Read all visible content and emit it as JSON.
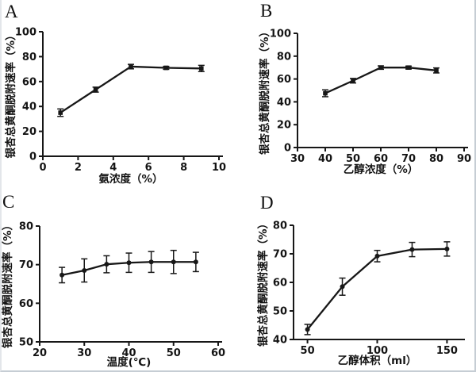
{
  "page": {
    "background": "#ffffff",
    "border_color": "#c6cdd4",
    "ink_color": "#171717"
  },
  "chart_data": [
    {
      "panel": "A",
      "type": "line",
      "x": [
        1,
        3,
        5,
        7,
        9
      ],
      "y": [
        35,
        53.5,
        72,
        71,
        70.5
      ],
      "yerr": [
        3,
        2,
        1.8,
        1.2,
        2.5
      ],
      "xlabel": "氨浓度（%）",
      "ylabel": "银杏总黄酮脱附速率（%）",
      "xlim": [
        0,
        10
      ],
      "ylim": [
        0,
        100
      ],
      "xticks": [
        0,
        2,
        4,
        6,
        8,
        10
      ],
      "yticks": [
        0,
        20,
        40,
        60,
        80,
        100
      ],
      "marker": "square",
      "line_color": "#171717",
      "grid": false,
      "legend": "none"
    },
    {
      "panel": "B",
      "type": "line",
      "x": [
        40,
        50,
        60,
        70,
        80
      ],
      "y": [
        47.5,
        58.5,
        70,
        70,
        67.5
      ],
      "yerr": [
        3,
        2,
        1.5,
        1.3,
        2.2
      ],
      "xlabel": "乙醇浓度（%）",
      "ylabel": "银杏总黄酮脱附速率（%）",
      "xlim": [
        30,
        90
      ],
      "ylim": [
        0,
        100
      ],
      "xticks": [
        30,
        40,
        50,
        60,
        70,
        80,
        90
      ],
      "yticks": [
        0,
        20,
        40,
        60,
        80,
        100
      ],
      "marker": "square",
      "line_color": "#171717",
      "grid": false,
      "legend": "none"
    },
    {
      "panel": "C",
      "type": "line",
      "x": [
        25,
        30,
        35,
        40,
        45,
        50,
        55
      ],
      "y": [
        67.3,
        68.5,
        70.1,
        70.5,
        70.7,
        70.7,
        70.7
      ],
      "yerr": [
        2,
        3,
        2.2,
        2.5,
        2.7,
        3,
        2.5
      ],
      "xlabel": "温度(℃)",
      "ylabel": "银杏总黄酮脱附速率（%）",
      "xlim": [
        20,
        60
      ],
      "ylim": [
        50,
        80
      ],
      "xticks": [
        20,
        30,
        40,
        50,
        60
      ],
      "yticks": [
        50,
        60,
        70,
        80
      ],
      "marker": "circle",
      "line_color": "#171717",
      "grid": false,
      "legend": "none"
    },
    {
      "panel": "D",
      "type": "line",
      "x": [
        50,
        75,
        100,
        125,
        150
      ],
      "y": [
        43.5,
        58.5,
        69.2,
        71.5,
        71.7
      ],
      "yerr": [
        1.8,
        3,
        2,
        2.5,
        2.5
      ],
      "xlabel": "乙醇体积（ml）",
      "ylabel": "银杏总黄酮脱附速率（%）",
      "xlim": [
        40,
        160
      ],
      "ylim": [
        40,
        80
      ],
      "xticks": [
        50,
        100,
        150
      ],
      "yticks": [
        40,
        50,
        60,
        70,
        80
      ],
      "marker": "circle",
      "line_color": "#171717",
      "grid": false,
      "legend": "none"
    }
  ]
}
